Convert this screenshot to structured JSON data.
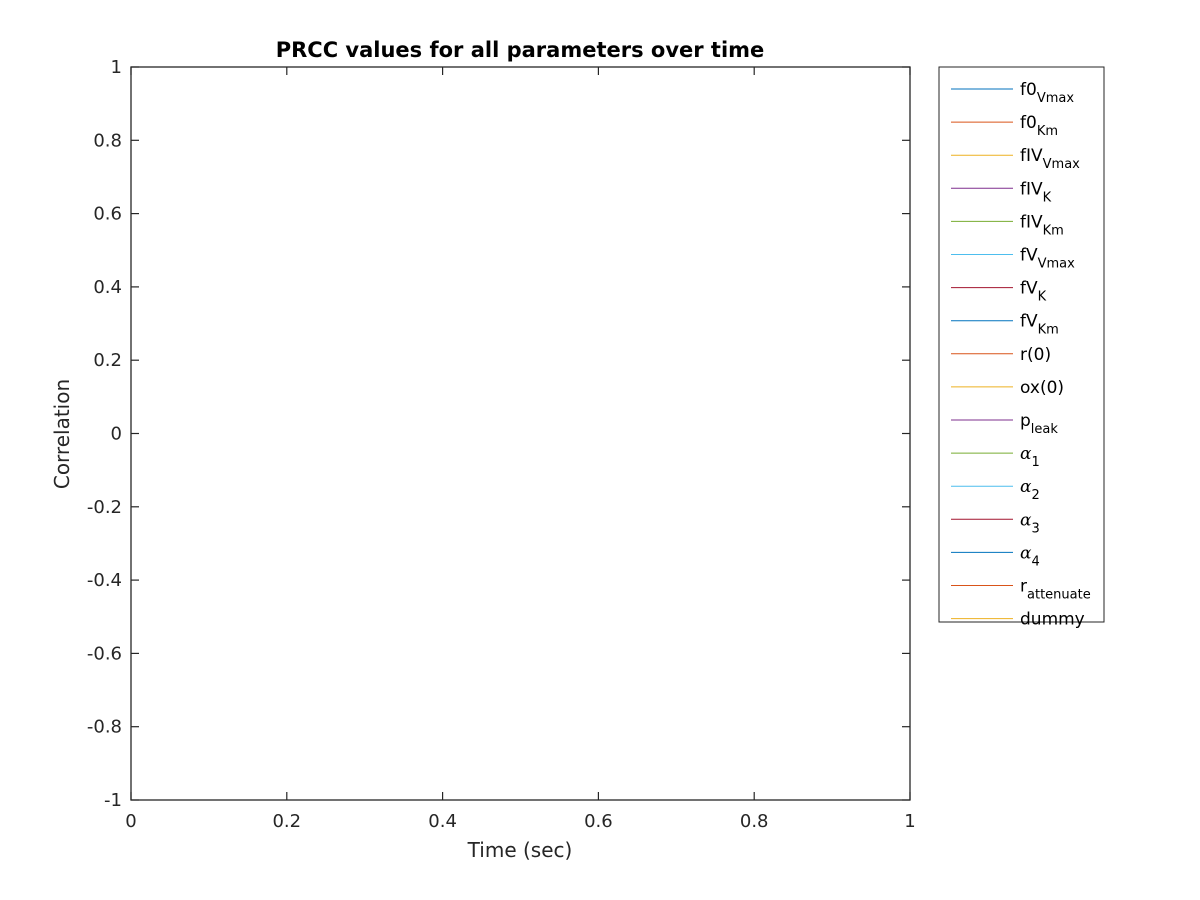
{
  "chart_data": {
    "type": "line",
    "title": "PRCC values for all parameters over time",
    "xlabel": "Time (sec)",
    "ylabel": "Correlation",
    "xlim": [
      0,
      1
    ],
    "ylim": [
      -1,
      1
    ],
    "x_ticks": [
      "0",
      "0.2",
      "0.4",
      "0.6",
      "0.8",
      "1"
    ],
    "y_ticks": [
      "1",
      "0.8",
      "0.6",
      "0.4",
      "0.2",
      "0",
      "-0.2",
      "-0.4",
      "-0.6",
      "-0.8",
      "-1"
    ],
    "grid": false,
    "legend_position": "outside-right",
    "series": [
      {
        "name": "f0_Vmax",
        "label_base": "f0",
        "label_sub": "Vmax",
        "greek": false,
        "color": "#0072BD",
        "values": []
      },
      {
        "name": "f0_Km",
        "label_base": "f0",
        "label_sub": "Km",
        "greek": false,
        "color": "#D95319",
        "values": []
      },
      {
        "name": "fIV_Vmax",
        "label_base": "fIV",
        "label_sub": "Vmax",
        "greek": false,
        "color": "#EDB120",
        "values": []
      },
      {
        "name": "fIV_K",
        "label_base": "fIV",
        "label_sub": "K",
        "greek": false,
        "color": "#7E2F8E",
        "values": []
      },
      {
        "name": "fIV_Km",
        "label_base": "fIV",
        "label_sub": "Km",
        "greek": false,
        "color": "#77AC30",
        "values": []
      },
      {
        "name": "fV_Vmax",
        "label_base": "fV",
        "label_sub": "Vmax",
        "greek": false,
        "color": "#4DBEEE",
        "values": []
      },
      {
        "name": "fV_K",
        "label_base": "fV",
        "label_sub": "K",
        "greek": false,
        "color": "#A2142F",
        "values": []
      },
      {
        "name": "fV_Km",
        "label_base": "fV",
        "label_sub": "Km",
        "greek": false,
        "color": "#0072BD",
        "values": []
      },
      {
        "name": "r(0)",
        "label_base": "r(0)",
        "label_sub": "",
        "greek": false,
        "color": "#D95319",
        "values": []
      },
      {
        "name": "ox(0)",
        "label_base": "ox(0)",
        "label_sub": "",
        "greek": false,
        "color": "#EDB120",
        "values": []
      },
      {
        "name": "p_leak",
        "label_base": "p",
        "label_sub": "leak",
        "greek": false,
        "color": "#7E2F8E",
        "values": []
      },
      {
        "name": "α_1",
        "label_base": "α",
        "label_sub": "1",
        "greek": true,
        "color": "#77AC30",
        "values": []
      },
      {
        "name": "α_2",
        "label_base": "α",
        "label_sub": "2",
        "greek": true,
        "color": "#4DBEEE",
        "values": []
      },
      {
        "name": "α_3",
        "label_base": "α",
        "label_sub": "3",
        "greek": true,
        "color": "#A2142F",
        "values": []
      },
      {
        "name": "α_4",
        "label_base": "α",
        "label_sub": "4",
        "greek": true,
        "color": "#0072BD",
        "values": []
      },
      {
        "name": "r_attenuate",
        "label_base": "r",
        "label_sub": "attenuate",
        "greek": false,
        "color": "#D95319",
        "values": []
      },
      {
        "name": "dummy",
        "label_base": "dummy",
        "label_sub": "",
        "greek": false,
        "color": "#EDB120",
        "values": []
      }
    ]
  }
}
